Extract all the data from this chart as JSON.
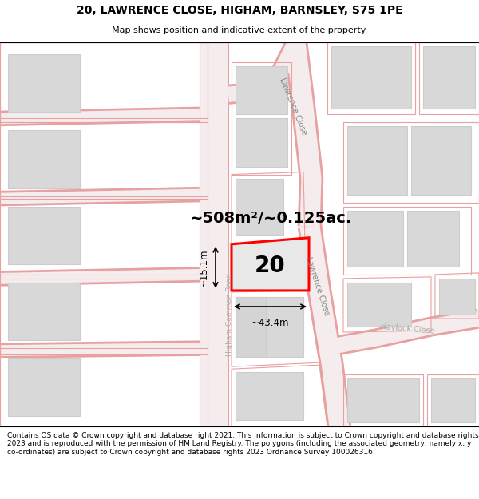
{
  "title": "20, LAWRENCE CLOSE, HIGHAM, BARNSLEY, S75 1PE",
  "subtitle": "Map shows position and indicative extent of the property.",
  "footer": "Contains OS data © Crown copyright and database right 2021. This information is subject to Crown copyright and database rights 2023 and is reproduced with the permission of HM Land Registry. The polygons (including the associated geometry, namely x, y co-ordinates) are subject to Crown copyright and database rights 2023 Ordnance Survey 100026316.",
  "area_text": "~508m²/~0.125ac.",
  "number_label": "20",
  "dim_width": "~43.4m",
  "dim_height": "~15.1m",
  "road_label_lc_upper": "Lawrence Close",
  "road_label_lc_lower": "Lawrence Close",
  "road_label_hcr": "Higham Common Road",
  "road_label_haylock": "Haylock Close",
  "map_bg": "#f7f6f4",
  "road_outline": "#e8a0a0",
  "road_fill": "#f5e8e8",
  "building_fill": "#d8d8d8",
  "building_edge": "#cccccc",
  "highlight_color": "#ff0000",
  "plot_fill": "#e8e8e8",
  "title_fontsize": 10,
  "subtitle_fontsize": 8,
  "footer_fontsize": 6.5,
  "area_fontsize": 14,
  "number_fontsize": 20,
  "dim_fontsize": 8.5,
  "road_label_fontsize": 7,
  "hcr_label_fontsize": 6.5
}
